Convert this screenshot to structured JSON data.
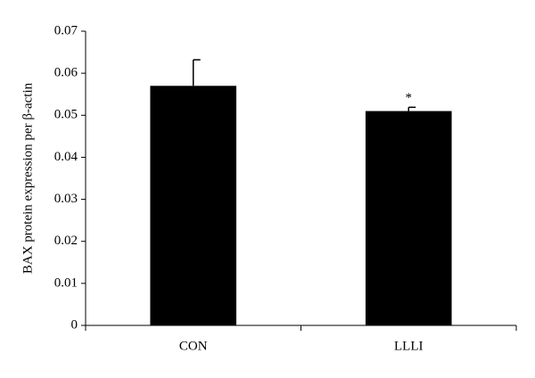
{
  "chart_data": {
    "type": "bar",
    "y_label": "BAX protein expression per β-actin",
    "categories": [
      "CON",
      "LLLI"
    ],
    "values": [
      0.057,
      0.051
    ],
    "errors": [
      0.0062,
      0.0009
    ],
    "value_annotations": [
      null,
      "*"
    ],
    "color": "#000000",
    "ylim": [
      0,
      0.07
    ],
    "yticks": [
      0,
      0.01,
      0.02,
      0.03,
      0.04,
      0.05,
      0.06,
      0.07
    ],
    "grid": false
  }
}
